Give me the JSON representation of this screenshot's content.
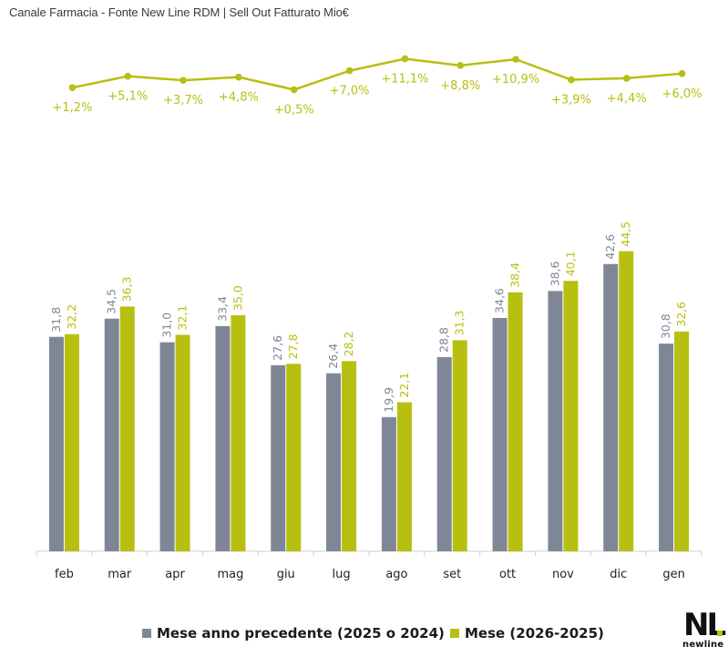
{
  "title": "Canale Farmacia - Fonte New Line RDM | Sell Out Fatturato Mio€",
  "colors": {
    "prev": "#7f8797",
    "curr": "#b7bf10",
    "axis": "#d0d0d0"
  },
  "chart_data": {
    "type": "bar",
    "categories": [
      "feb",
      "mar",
      "apr",
      "mag",
      "giu",
      "lug",
      "ago",
      "set",
      "ott",
      "nov",
      "dic",
      "gen"
    ],
    "series": [
      {
        "name": "Mese anno precedente (2025 o 2024)",
        "values": [
          31.8,
          34.5,
          31.0,
          33.4,
          27.6,
          26.4,
          19.9,
          28.8,
          34.6,
          38.6,
          42.6,
          30.8
        ],
        "labels": [
          "31,8",
          "34,5",
          "31,0",
          "33,4",
          "27,6",
          "26,4",
          "19,9",
          "28,8",
          "34,6",
          "38,6",
          "42,6",
          "30,8"
        ]
      },
      {
        "name": "Mese (2026-2025)",
        "values": [
          32.2,
          36.3,
          32.1,
          35.0,
          27.8,
          28.2,
          22.1,
          31.3,
          38.4,
          40.1,
          44.5,
          32.6
        ],
        "labels": [
          "32,2",
          "36,3",
          "32,1",
          "35,0",
          "27,8",
          "28,2",
          "22,1",
          "31,3",
          "38,4",
          "40,1",
          "44,5",
          "32,6"
        ]
      }
    ],
    "growth": {
      "type": "line",
      "values": [
        1.2,
        5.1,
        3.7,
        4.8,
        0.5,
        7.0,
        11.1,
        8.8,
        10.9,
        3.9,
        4.4,
        6.0
      ],
      "labels": [
        "+1,2%",
        "+5,1%",
        "+3,7%",
        "+4,8%",
        "+0,5%",
        "+7,0%",
        "+11,1%",
        "+8,8%",
        "+10,9%",
        "+3,9%",
        "+4,4%",
        "+6,0%"
      ]
    },
    "ylim": [
      0,
      50
    ],
    "legend": "bottom",
    "grid": false
  },
  "legend": {
    "prev_label": "Mese anno precedente (2025 o 2024)",
    "curr_label": "Mese (2026-2025)"
  },
  "logo": {
    "letters": "NL",
    "text": "newline"
  }
}
